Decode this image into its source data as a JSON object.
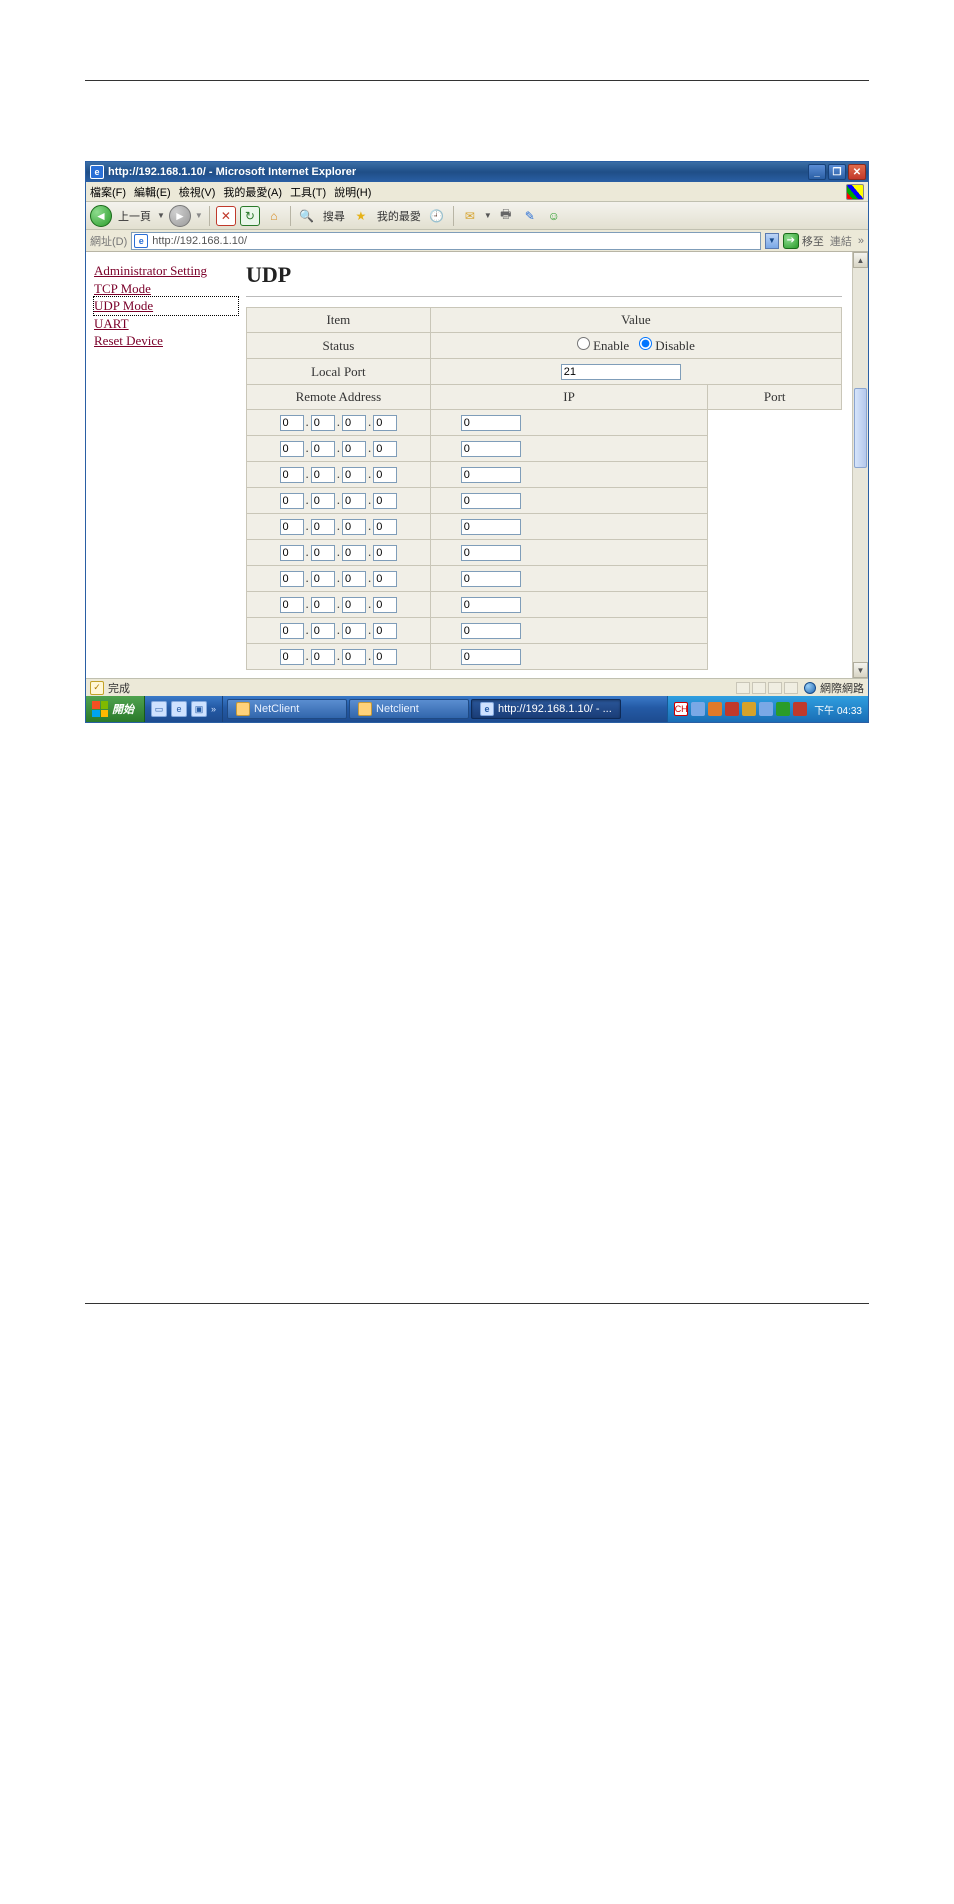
{
  "window": {
    "title": "http://192.168.1.10/ - Microsoft Internet Explorer"
  },
  "menu": {
    "file": "檔案(F)",
    "edit": "編輯(E)",
    "view": "檢視(V)",
    "fav": "我的最愛(A)",
    "tools": "工具(T)",
    "help": "說明(H)"
  },
  "toolbar": {
    "back": "上一頁",
    "search": "搜尋",
    "favorites": "我的最愛"
  },
  "address": {
    "label": "網址(D)",
    "url": "http://192.168.1.10/",
    "go": "移至",
    "links": "連結"
  },
  "sidenav": {
    "admin": "Administrator Setting",
    "tcp": "TCP Mode",
    "udp": "UDP Mode",
    "uart": "UART",
    "reset": "Reset Device"
  },
  "panel": {
    "title": "UDP",
    "itemHeader": "Item",
    "valueHeader": "Value",
    "statusLabel": "Status",
    "enable": "Enable",
    "disable": "Disable",
    "statusValue": "disable",
    "localPortLabel": "Local Port",
    "localPortValue": "21",
    "remoteLabel": "Remote Address",
    "ipHeader": "IP",
    "portHeader": "Port",
    "rows": [
      {
        "ip": [
          "0",
          "0",
          "0",
          "0"
        ],
        "port": "0"
      },
      {
        "ip": [
          "0",
          "0",
          "0",
          "0"
        ],
        "port": "0"
      },
      {
        "ip": [
          "0",
          "0",
          "0",
          "0"
        ],
        "port": "0"
      },
      {
        "ip": [
          "0",
          "0",
          "0",
          "0"
        ],
        "port": "0"
      },
      {
        "ip": [
          "0",
          "0",
          "0",
          "0"
        ],
        "port": "0"
      },
      {
        "ip": [
          "0",
          "0",
          "0",
          "0"
        ],
        "port": "0"
      },
      {
        "ip": [
          "0",
          "0",
          "0",
          "0"
        ],
        "port": "0"
      },
      {
        "ip": [
          "0",
          "0",
          "0",
          "0"
        ],
        "port": "0"
      },
      {
        "ip": [
          "0",
          "0",
          "0",
          "0"
        ],
        "port": "0"
      },
      {
        "ip": [
          "0",
          "0",
          "0",
          "0"
        ],
        "port": "0"
      }
    ]
  },
  "status": {
    "done": "完成",
    "zone": "網際網路"
  },
  "taskbar": {
    "start": "開始",
    "tasks": [
      {
        "label": "NetClient",
        "active": false,
        "iconClass": ""
      },
      {
        "label": "Netclient",
        "active": false,
        "iconClass": ""
      },
      {
        "label": "http://192.168.1.10/ - ...",
        "active": true,
        "iconClass": "ie"
      }
    ],
    "clock": "下午 04:33"
  },
  "tray": {
    "ime": "CH"
  },
  "colors": {
    "xpBlue": "#245aa5",
    "xpGreen": "#2a7a2a",
    "linkColor": "#7b002a",
    "cellBg": "#f1efe7",
    "border": "#c9c6b8"
  }
}
